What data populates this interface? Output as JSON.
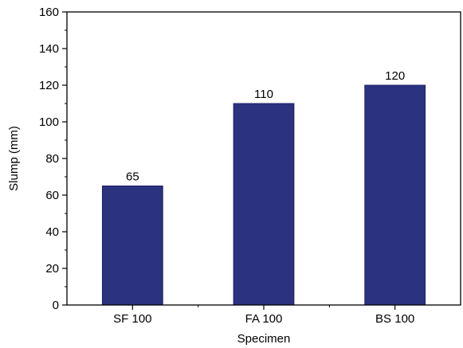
{
  "chart_data": {
    "type": "bar",
    "title": "",
    "xlabel": "Specimen",
    "ylabel": "Slump (mm)",
    "categories": [
      "SF 100",
      "FA 100",
      "BS 100"
    ],
    "values": [
      65,
      110,
      120
    ],
    "data_labels": [
      "65",
      "110",
      "120"
    ],
    "ylim": [
      0,
      160
    ],
    "yticks": [
      0,
      20,
      40,
      60,
      80,
      100,
      120,
      140,
      160
    ],
    "grid": false,
    "legend": "none",
    "bar_color": "#2b3280",
    "axis_color": "#000000"
  }
}
